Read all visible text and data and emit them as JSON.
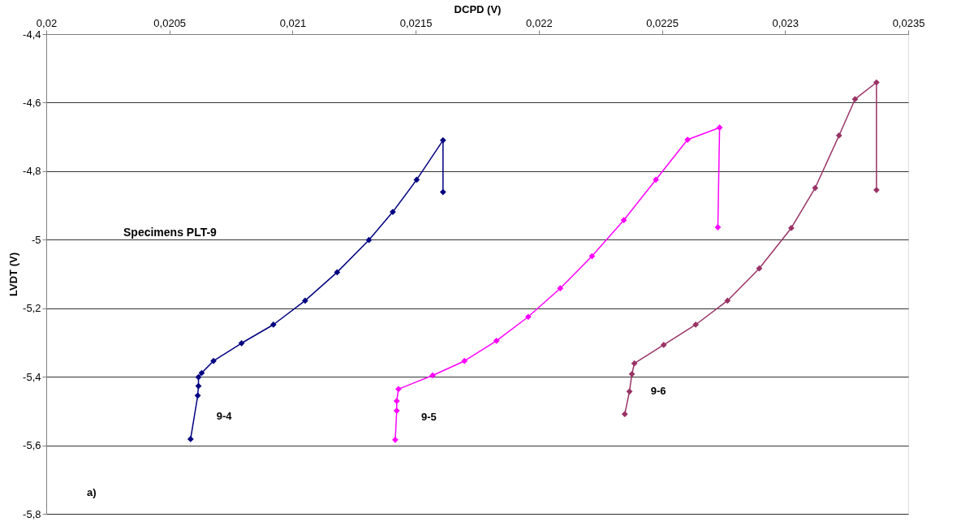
{
  "chart_data": {
    "type": "line",
    "xlabel": "DCPD (V)",
    "ylabel": "LVDT (V)",
    "xlim": [
      0.02,
      0.0235
    ],
    "ylim": [
      -5.8,
      -4.4
    ],
    "xticks": [
      {
        "value": 0.02,
        "label": "0,02"
      },
      {
        "value": 0.0205,
        "label": "0,0205"
      },
      {
        "value": 0.021,
        "label": "0,021"
      },
      {
        "value": 0.0215,
        "label": "0,0215"
      },
      {
        "value": 0.022,
        "label": "0,022"
      },
      {
        "value": 0.0225,
        "label": "0,0225"
      },
      {
        "value": 0.023,
        "label": "0,023"
      },
      {
        "value": 0.0235,
        "label": "0,0235"
      }
    ],
    "yticks": [
      {
        "value": -5.8,
        "label": "-5,8"
      },
      {
        "value": -5.6,
        "label": "-5,6"
      },
      {
        "value": -5.4,
        "label": "-5,4"
      },
      {
        "value": -5.2,
        "label": "-5,2"
      },
      {
        "value": -5,
        "label": "-5"
      },
      {
        "value": -4.8,
        "label": "-4,8"
      },
      {
        "value": -4.6,
        "label": "-4,6"
      },
      {
        "value": -4.4,
        "label": "-4,4"
      }
    ],
    "grid": "y",
    "marker": "diamond",
    "line_style": "solid",
    "annotations": [
      "Specimens PLT-9",
      "a)"
    ],
    "series": [
      {
        "name": "9-4",
        "color": "#000080",
        "x": [
          0.020586,
          0.020615,
          0.020618,
          0.020618,
          0.020631,
          0.020679,
          0.020793,
          0.020922,
          0.021051,
          0.021181,
          0.02131,
          0.021407,
          0.021504,
          0.021611,
          0.021611
        ],
        "values": [
          -5.582,
          -5.455,
          -5.427,
          -5.401,
          -5.389,
          -5.354,
          -5.302,
          -5.248,
          -5.178,
          -5.095,
          -5.001,
          -4.919,
          -4.825,
          -4.71,
          -4.861
        ]
      },
      {
        "name": "9-5",
        "color": "#ff00ff",
        "x": [
          0.021417,
          0.021423,
          0.021423,
          0.02143,
          0.021569,
          0.021698,
          0.021828,
          0.021957,
          0.022087,
          0.022216,
          0.022345,
          0.022475,
          0.022604,
          0.022734,
          0.022727
        ],
        "values": [
          -5.584,
          -5.499,
          -5.471,
          -5.436,
          -5.396,
          -5.354,
          -5.295,
          -5.225,
          -5.142,
          -5.048,
          -4.943,
          -4.825,
          -4.708,
          -4.673,
          -4.964
        ]
      },
      {
        "name": "9-6",
        "color": "#993366",
        "x": [
          0.022349,
          0.022368,
          0.022378,
          0.022388,
          0.022507,
          0.022637,
          0.022766,
          0.022895,
          0.023025,
          0.023122,
          0.023219,
          0.023284,
          0.023371,
          0.023371
        ],
        "values": [
          -5.509,
          -5.443,
          -5.392,
          -5.361,
          -5.307,
          -5.248,
          -5.178,
          -5.084,
          -4.966,
          -4.849,
          -4.696,
          -4.59,
          -4.541,
          -4.855
        ]
      }
    ]
  }
}
